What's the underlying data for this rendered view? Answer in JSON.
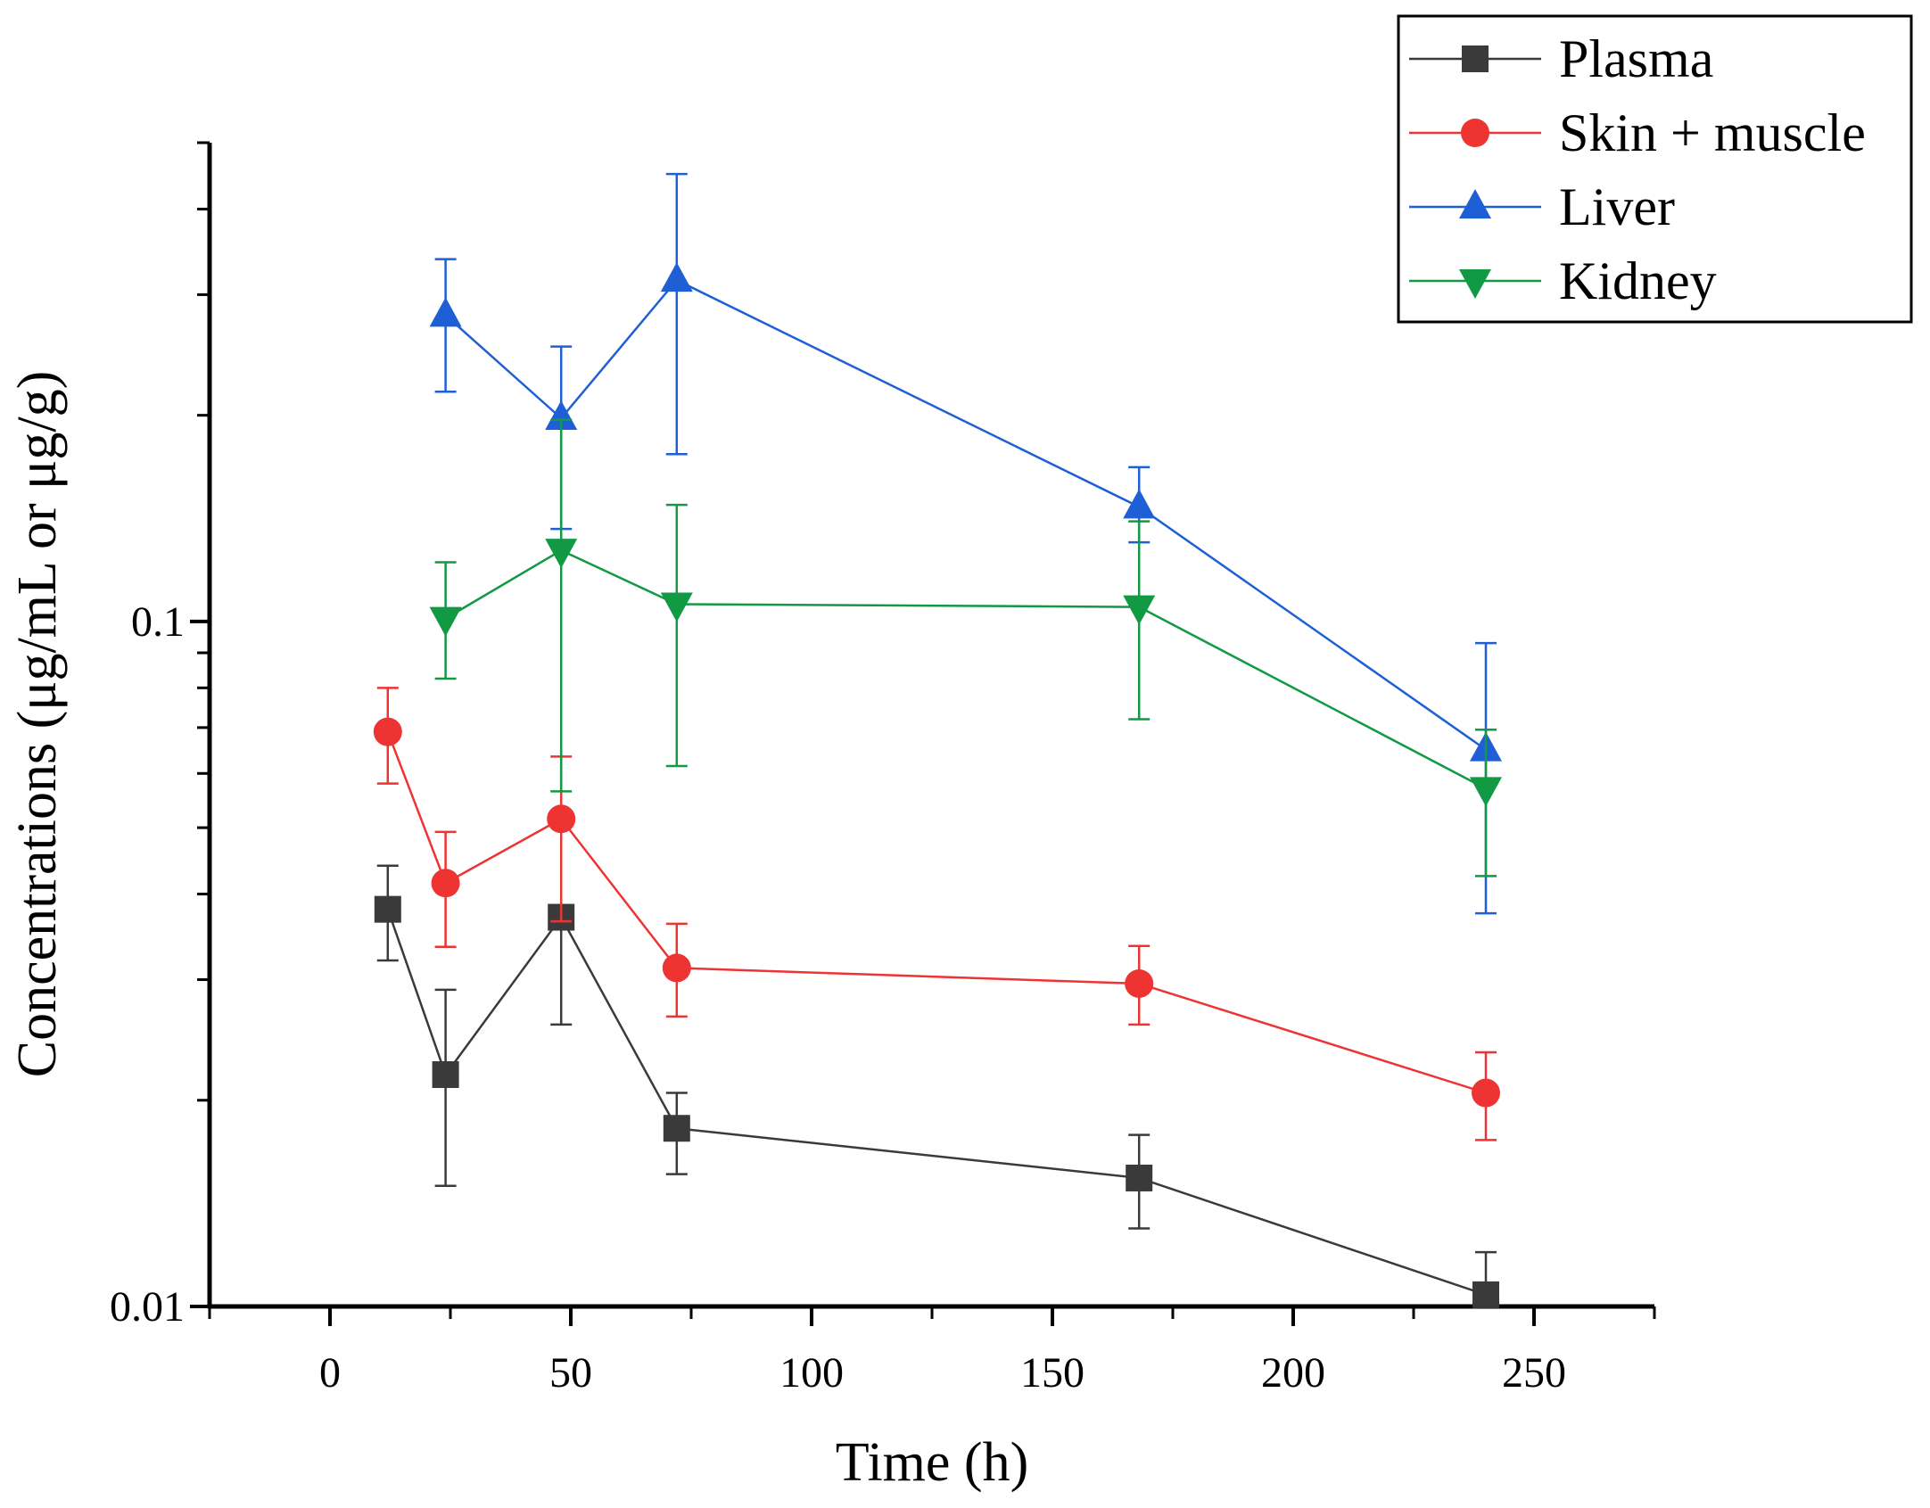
{
  "chart_data": {
    "type": "line",
    "title": "",
    "xlabel": "Time (h)",
    "ylabel": "Concentrations (μg/mL or μg/g)",
    "x_scale": "linear",
    "y_scale": "log",
    "xlim": [
      -25,
      275
    ],
    "ylim": [
      0.01,
      0.5
    ],
    "x_ticks": [
      0,
      50,
      100,
      150,
      200,
      250
    ],
    "x_tick_labels": [
      "0",
      "50",
      "100",
      "150",
      "200",
      "250"
    ],
    "y_ticks": [
      0.01,
      0.1
    ],
    "y_tick_labels": [
      "0.01",
      "0.1"
    ],
    "grid": false,
    "legend_position": "top-right",
    "series": [
      {
        "name": "Plasma",
        "color": "#3a3a3a",
        "marker": "square",
        "points": [
          {
            "x": 12,
            "y": 0.038,
            "lo": 0.032,
            "hi": 0.044
          },
          {
            "x": 24,
            "y": 0.0218,
            "lo": 0.015,
            "hi": 0.029
          },
          {
            "x": 48,
            "y": 0.037,
            "lo": 0.0258,
            "hi": null
          },
          {
            "x": 72,
            "y": 0.0182,
            "lo": 0.0156,
            "hi": 0.0205
          },
          {
            "x": 168,
            "y": 0.0154,
            "lo": 0.013,
            "hi": 0.0178
          },
          {
            "x": 240,
            "y": 0.0104,
            "lo": null,
            "hi": 0.012
          }
        ]
      },
      {
        "name": "Skin + muscle",
        "color": "#ee3333",
        "marker": "circle",
        "points": [
          {
            "x": 12,
            "y": 0.069,
            "lo": 0.058,
            "hi": 0.08
          },
          {
            "x": 24,
            "y": 0.0415,
            "lo": 0.0335,
            "hi": 0.0493
          },
          {
            "x": 48,
            "y": 0.0515,
            "lo": 0.0365,
            "hi": 0.0635
          },
          {
            "x": 72,
            "y": 0.0312,
            "lo": 0.0265,
            "hi": 0.0362
          },
          {
            "x": 168,
            "y": 0.0296,
            "lo": 0.0258,
            "hi": 0.0336
          },
          {
            "x": 240,
            "y": 0.0205,
            "lo": 0.0175,
            "hi": 0.0235
          }
        ]
      },
      {
        "name": "Liver",
        "color": "#1f5fd6",
        "marker": "triangle-up",
        "points": [
          {
            "x": 24,
            "y": 0.28,
            "lo": 0.2165,
            "hi": 0.338
          },
          {
            "x": 48,
            "y": 0.198,
            "lo": 0.1365,
            "hi": 0.252
          },
          {
            "x": 72,
            "y": 0.315,
            "lo": 0.1755,
            "hi": 0.45
          },
          {
            "x": 168,
            "y": 0.147,
            "lo": 0.1305,
            "hi": 0.168
          },
          {
            "x": 240,
            "y": 0.065,
            "lo": 0.0375,
            "hi": 0.093
          }
        ]
      },
      {
        "name": "Kidney",
        "color": "#119944",
        "marker": "triangle-down",
        "points": [
          {
            "x": 24,
            "y": 0.101,
            "lo": 0.0825,
            "hi": 0.122
          },
          {
            "x": 48,
            "y": 0.127,
            "lo": 0.0565,
            "hi": 0.197
          },
          {
            "x": 72,
            "y": 0.106,
            "lo": 0.0615,
            "hi": 0.148
          },
          {
            "x": 168,
            "y": 0.105,
            "lo": 0.072,
            "hi": 0.14
          },
          {
            "x": 240,
            "y": 0.057,
            "lo": 0.0425,
            "hi": 0.0695
          }
        ]
      }
    ]
  }
}
